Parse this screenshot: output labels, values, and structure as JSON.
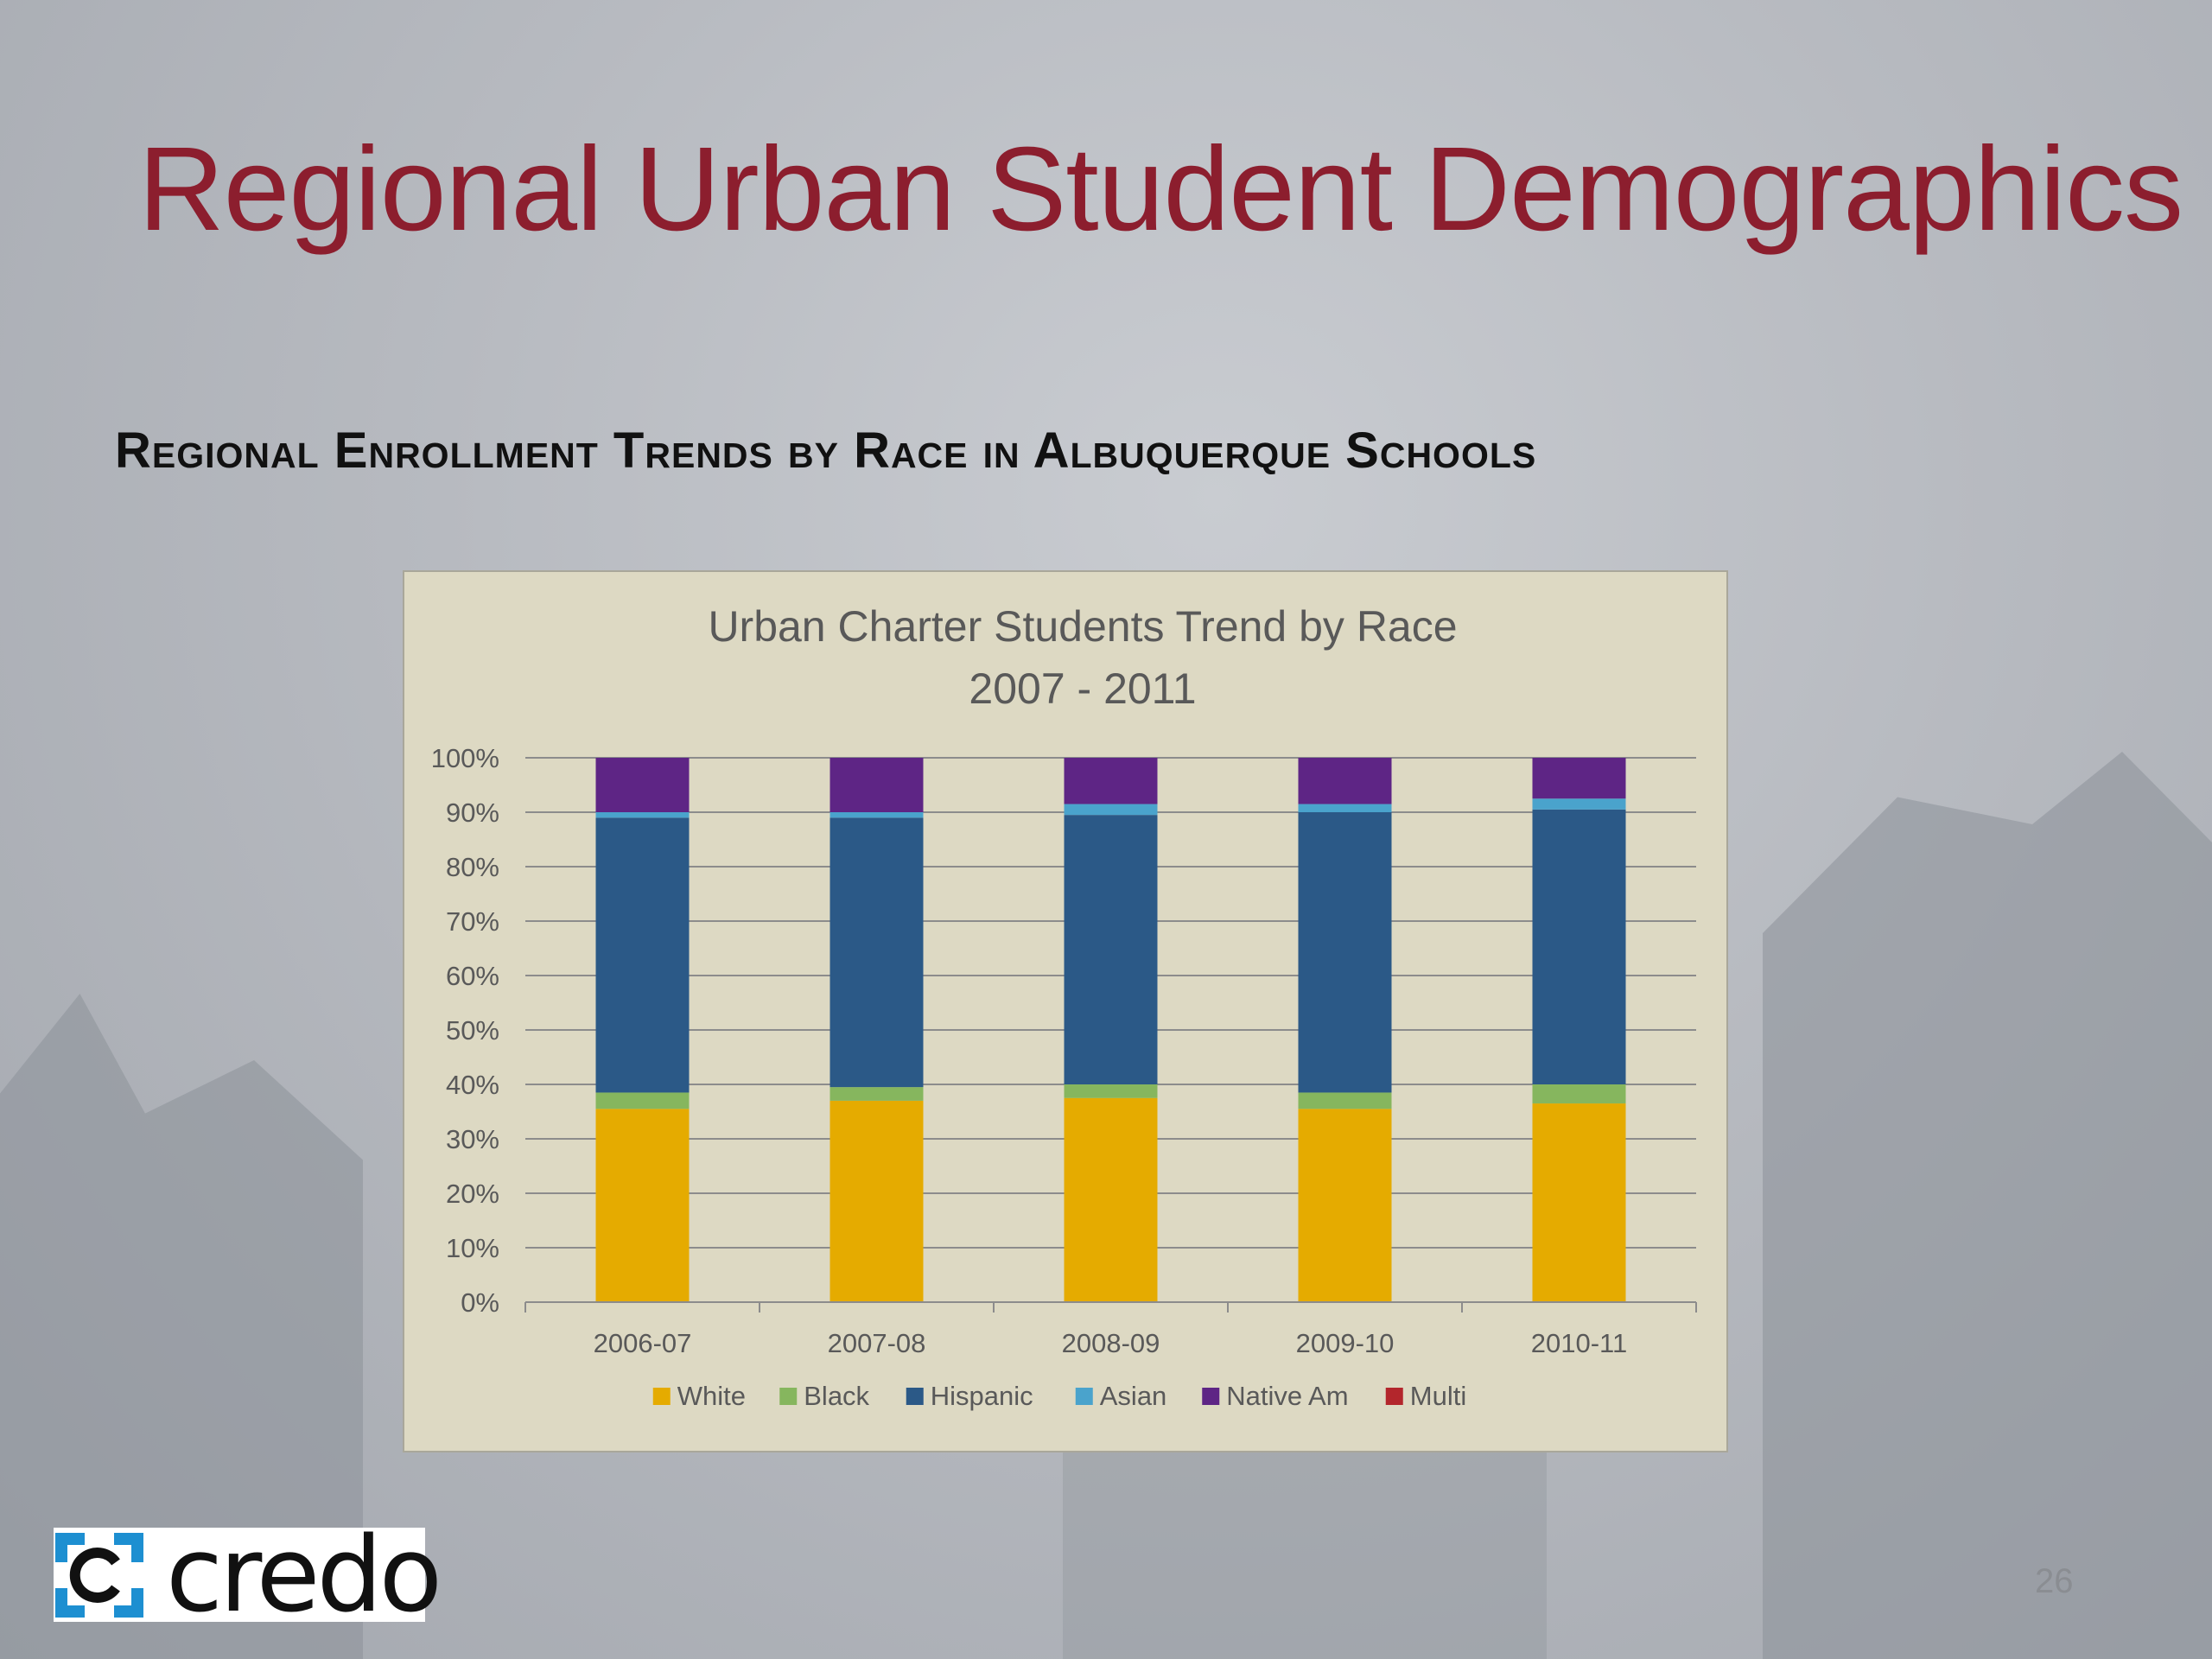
{
  "slide": {
    "title": "Regional Urban Student Demographics",
    "subtitle": "Regional Enrollment Trends by Race in Albuquerque Schools",
    "page_number": "26",
    "logo_text": "credo"
  },
  "colors": {
    "title": "#8c1e2e",
    "chart_bg": "#ddd9c3",
    "White": "#e5ab00",
    "Black": "#86b65e",
    "Hispanic": "#2b5987",
    "Asian": "#4aa3cc",
    "Native Am": "#5e2585",
    "Multi": "#b3262c"
  },
  "chart_data": {
    "type": "bar",
    "stacked": true,
    "title": "Urban Charter Students Trend by Race",
    "subtitle": "2007 - 2011",
    "categories": [
      "2006-07",
      "2007-08",
      "2008-09",
      "2009-10",
      "2010-11"
    ],
    "series": [
      {
        "name": "White",
        "values": [
          35.5,
          37.0,
          37.5,
          35.5,
          36.5
        ]
      },
      {
        "name": "Black",
        "values": [
          3.0,
          2.5,
          2.5,
          3.0,
          3.5
        ]
      },
      {
        "name": "Hispanic",
        "values": [
          50.5,
          49.5,
          49.5,
          51.5,
          50.5
        ]
      },
      {
        "name": "Asian",
        "values": [
          1.0,
          1.0,
          2.0,
          1.5,
          2.0
        ]
      },
      {
        "name": "Native Am",
        "values": [
          10.0,
          10.0,
          8.5,
          8.5,
          7.5
        ]
      },
      {
        "name": "Multi",
        "values": [
          0,
          0,
          0,
          0,
          0
        ]
      }
    ],
    "ylim": [
      0,
      100
    ],
    "yticks": [
      "0%",
      "10%",
      "20%",
      "30%",
      "40%",
      "50%",
      "60%",
      "70%",
      "80%",
      "90%",
      "100%"
    ],
    "grid": true,
    "legend": "bottom"
  }
}
